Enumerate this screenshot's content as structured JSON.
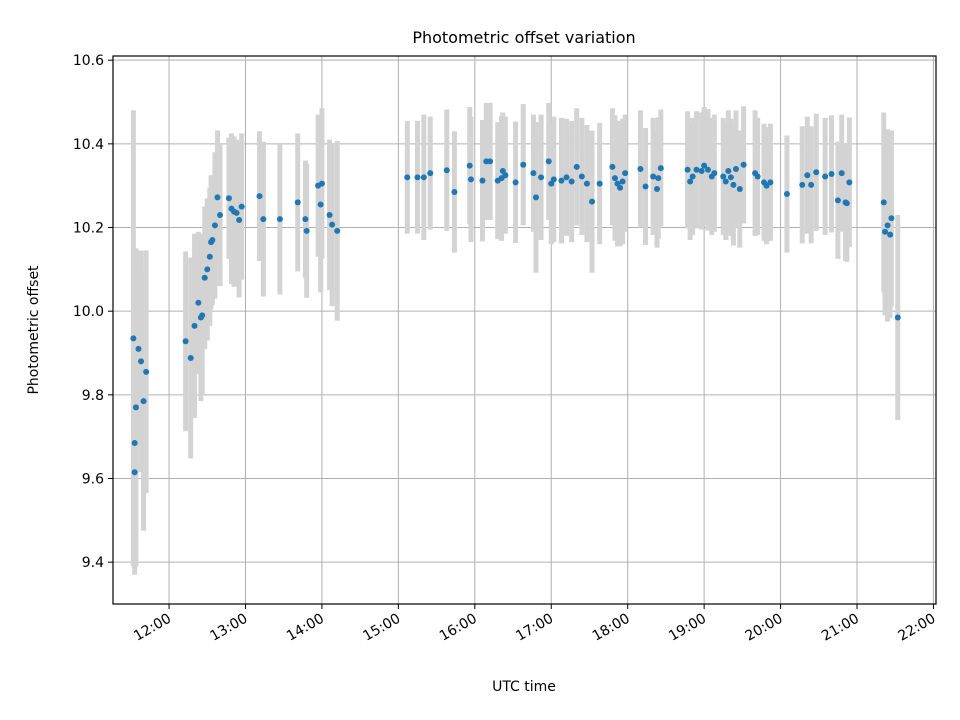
{
  "chart_data": {
    "type": "scatter",
    "title": "Photometric offset variation",
    "xlabel": "UTC time",
    "ylabel": "Photometric offset",
    "xlim": [
      "11:16",
      "22:02"
    ],
    "ylim": [
      9.3,
      10.61
    ],
    "x_ticks": [
      "12:00",
      "13:00",
      "14:00",
      "15:00",
      "16:00",
      "17:00",
      "18:00",
      "19:00",
      "20:00",
      "21:00",
      "22:00"
    ],
    "y_ticks": [
      "9.4",
      "9.6",
      "9.8",
      "10.0",
      "10.2",
      "10.4",
      "10.6"
    ],
    "grid": true,
    "colors": {
      "point": "#1f77b4",
      "errorbar": "#d3d3d3",
      "grid": "#b0b0b0"
    },
    "points": [
      {
        "t": "11:32",
        "y": 9.935,
        "err": 0.545
      },
      {
        "t": "11:33",
        "y": 9.615,
        "err": 0.245
      },
      {
        "t": "11:33",
        "y": 9.685,
        "err": 0.3
      },
      {
        "t": "11:34",
        "y": 9.77,
        "err": 0.38
      },
      {
        "t": "11:36",
        "y": 9.91,
        "err": 0.235
      },
      {
        "t": "11:38",
        "y": 9.88,
        "err": 0.265
      },
      {
        "t": "11:40",
        "y": 9.785,
        "err": 0.31
      },
      {
        "t": "11:42",
        "y": 9.855,
        "err": 0.29
      },
      {
        "t": "12:13",
        "y": 9.928,
        "err": 0.215
      },
      {
        "t": "12:17",
        "y": 9.888,
        "err": 0.24
      },
      {
        "t": "12:20",
        "y": 9.965,
        "err": 0.22
      },
      {
        "t": "12:23",
        "y": 10.02,
        "err": 0.17
      },
      {
        "t": "12:25",
        "y": 9.985,
        "err": 0.2
      },
      {
        "t": "12:26",
        "y": 9.99,
        "err": 0.19
      },
      {
        "t": "12:28",
        "y": 10.08,
        "err": 0.17
      },
      {
        "t": "12:30",
        "y": 10.1,
        "err": 0.17
      },
      {
        "t": "12:32",
        "y": 10.13,
        "err": 0.165
      },
      {
        "t": "12:33",
        "y": 10.165,
        "err": 0.16
      },
      {
        "t": "12:34",
        "y": 10.17,
        "err": 0.155
      },
      {
        "t": "12:36",
        "y": 10.205,
        "err": 0.175
      },
      {
        "t": "12:38",
        "y": 10.272,
        "err": 0.16
      },
      {
        "t": "12:40",
        "y": 10.23,
        "err": 0.17
      },
      {
        "t": "12:47",
        "y": 10.27,
        "err": 0.145
      },
      {
        "t": "12:49",
        "y": 10.245,
        "err": 0.18
      },
      {
        "t": "12:51",
        "y": 10.238,
        "err": 0.18
      },
      {
        "t": "12:53",
        "y": 10.235,
        "err": 0.175
      },
      {
        "t": "12:55",
        "y": 10.218,
        "err": 0.185
      },
      {
        "t": "12:57",
        "y": 10.25,
        "err": 0.175
      },
      {
        "t": "13:11",
        "y": 10.275,
        "err": 0.155
      },
      {
        "t": "13:14",
        "y": 10.22,
        "err": 0.185
      },
      {
        "t": "13:27",
        "y": 10.22,
        "err": 0.18
      },
      {
        "t": "13:41",
        "y": 10.26,
        "err": 0.165
      },
      {
        "t": "13:47",
        "y": 10.22,
        "err": 0.14
      },
      {
        "t": "13:48",
        "y": 10.192,
        "err": 0.16
      },
      {
        "t": "13:57",
        "y": 10.3,
        "err": 0.17
      },
      {
        "t": "13:59",
        "y": 10.255,
        "err": 0.21
      },
      {
        "t": "14:00",
        "y": 10.305,
        "err": 0.18
      },
      {
        "t": "14:06",
        "y": 10.23,
        "err": 0.18
      },
      {
        "t": "14:08",
        "y": 10.207,
        "err": 0.195
      },
      {
        "t": "14:12",
        "y": 10.192,
        "err": 0.215
      },
      {
        "t": "15:07",
        "y": 10.32,
        "err": 0.135
      },
      {
        "t": "15:15",
        "y": 10.32,
        "err": 0.135
      },
      {
        "t": "15:20",
        "y": 10.32,
        "err": 0.15
      },
      {
        "t": "15:25",
        "y": 10.33,
        "err": 0.135
      },
      {
        "t": "15:38",
        "y": 10.337,
        "err": 0.145
      },
      {
        "t": "15:44",
        "y": 10.285,
        "err": 0.145
      },
      {
        "t": "15:56",
        "y": 10.348,
        "err": 0.14
      },
      {
        "t": "15:57",
        "y": 10.315,
        "err": 0.15
      },
      {
        "t": "16:06",
        "y": 10.312,
        "err": 0.145
      },
      {
        "t": "16:09",
        "y": 10.358,
        "err": 0.14
      },
      {
        "t": "16:12",
        "y": 10.358,
        "err": 0.14
      },
      {
        "t": "16:18",
        "y": 10.312,
        "err": 0.14
      },
      {
        "t": "16:21",
        "y": 10.318,
        "err": 0.15
      },
      {
        "t": "16:22",
        "y": 10.335,
        "err": 0.14
      },
      {
        "t": "16:24",
        "y": 10.325,
        "err": 0.14
      },
      {
        "t": "16:32",
        "y": 10.308,
        "err": 0.145
      },
      {
        "t": "16:38",
        "y": 10.35,
        "err": 0.145
      },
      {
        "t": "16:46",
        "y": 10.33,
        "err": 0.14
      },
      {
        "t": "16:48",
        "y": 10.272,
        "err": 0.18
      },
      {
        "t": "16:52",
        "y": 10.32,
        "err": 0.15
      },
      {
        "t": "16:58",
        "y": 10.358,
        "err": 0.14
      },
      {
        "t": "17:00",
        "y": 10.305,
        "err": 0.145
      },
      {
        "t": "17:02",
        "y": 10.315,
        "err": 0.15
      },
      {
        "t": "17:08",
        "y": 10.312,
        "err": 0.15
      },
      {
        "t": "17:12",
        "y": 10.32,
        "err": 0.14
      },
      {
        "t": "17:16",
        "y": 10.31,
        "err": 0.145
      },
      {
        "t": "17:20",
        "y": 10.345,
        "err": 0.14
      },
      {
        "t": "17:24",
        "y": 10.322,
        "err": 0.14
      },
      {
        "t": "17:28",
        "y": 10.305,
        "err": 0.14
      },
      {
        "t": "17:32",
        "y": 10.262,
        "err": 0.17
      },
      {
        "t": "17:38",
        "y": 10.305,
        "err": 0.145
      },
      {
        "t": "17:48",
        "y": 10.345,
        "err": 0.14
      },
      {
        "t": "17:50",
        "y": 10.318,
        "err": 0.15
      },
      {
        "t": "17:52",
        "y": 10.305,
        "err": 0.15
      },
      {
        "t": "17:54",
        "y": 10.295,
        "err": 0.14
      },
      {
        "t": "17:56",
        "y": 10.31,
        "err": 0.15
      },
      {
        "t": "17:58",
        "y": 10.33,
        "err": 0.14
      },
      {
        "t": "18:10",
        "y": 10.34,
        "err": 0.14
      },
      {
        "t": "18:14",
        "y": 10.298,
        "err": 0.14
      },
      {
        "t": "18:20",
        "y": 10.322,
        "err": 0.14
      },
      {
        "t": "18:23",
        "y": 10.292,
        "err": 0.14
      },
      {
        "t": "18:24",
        "y": 10.318,
        "err": 0.145
      },
      {
        "t": "18:26",
        "y": 10.342,
        "err": 0.14
      },
      {
        "t": "18:47",
        "y": 10.338,
        "err": 0.14
      },
      {
        "t": "18:49",
        "y": 10.31,
        "err": 0.14
      },
      {
        "t": "18:51",
        "y": 10.322,
        "err": 0.14
      },
      {
        "t": "18:54",
        "y": 10.338,
        "err": 0.14
      },
      {
        "t": "18:58",
        "y": 10.335,
        "err": 0.14
      },
      {
        "t": "19:00",
        "y": 10.348,
        "err": 0.14
      },
      {
        "t": "19:03",
        "y": 10.338,
        "err": 0.145
      },
      {
        "t": "19:06",
        "y": 10.322,
        "err": 0.14
      },
      {
        "t": "19:08",
        "y": 10.33,
        "err": 0.14
      },
      {
        "t": "19:15",
        "y": 10.322,
        "err": 0.14
      },
      {
        "t": "19:17",
        "y": 10.31,
        "err": 0.14
      },
      {
        "t": "19:19",
        "y": 10.335,
        "err": 0.145
      },
      {
        "t": "19:21",
        "y": 10.32,
        "err": 0.14
      },
      {
        "t": "19:23",
        "y": 10.302,
        "err": 0.145
      },
      {
        "t": "19:25",
        "y": 10.34,
        "err": 0.14
      },
      {
        "t": "19:28",
        "y": 10.292,
        "err": 0.14
      },
      {
        "t": "19:31",
        "y": 10.35,
        "err": 0.14
      },
      {
        "t": "19:40",
        "y": 10.33,
        "err": 0.15
      },
      {
        "t": "19:42",
        "y": 10.322,
        "err": 0.14
      },
      {
        "t": "19:47",
        "y": 10.308,
        "err": 0.14
      },
      {
        "t": "19:49",
        "y": 10.3,
        "err": 0.14
      },
      {
        "t": "19:52",
        "y": 10.308,
        "err": 0.14
      },
      {
        "t": "20:05",
        "y": 10.28,
        "err": 0.14
      },
      {
        "t": "20:17",
        "y": 10.302,
        "err": 0.14
      },
      {
        "t": "20:21",
        "y": 10.325,
        "err": 0.14
      },
      {
        "t": "20:24",
        "y": 10.302,
        "err": 0.14
      },
      {
        "t": "20:28",
        "y": 10.332,
        "err": 0.14
      },
      {
        "t": "20:35",
        "y": 10.322,
        "err": 0.14
      },
      {
        "t": "20:40",
        "y": 10.328,
        "err": 0.14
      },
      {
        "t": "20:45",
        "y": 10.265,
        "err": 0.14
      },
      {
        "t": "20:48",
        "y": 10.33,
        "err": 0.14
      },
      {
        "t": "20:51",
        "y": 10.26,
        "err": 0.14
      },
      {
        "t": "20:52",
        "y": 10.258,
        "err": 0.14
      },
      {
        "t": "20:54",
        "y": 10.308,
        "err": 0.155
      },
      {
        "t": "21:21",
        "y": 10.26,
        "err": 0.215
      },
      {
        "t": "21:22",
        "y": 10.19,
        "err": 0.2
      },
      {
        "t": "21:24",
        "y": 10.205,
        "err": 0.23
      },
      {
        "t": "21:26",
        "y": 10.183,
        "err": 0.2
      },
      {
        "t": "21:27",
        "y": 10.222,
        "err": 0.21
      },
      {
        "t": "21:32",
        "y": 9.985,
        "err": 0.245
      }
    ]
  }
}
